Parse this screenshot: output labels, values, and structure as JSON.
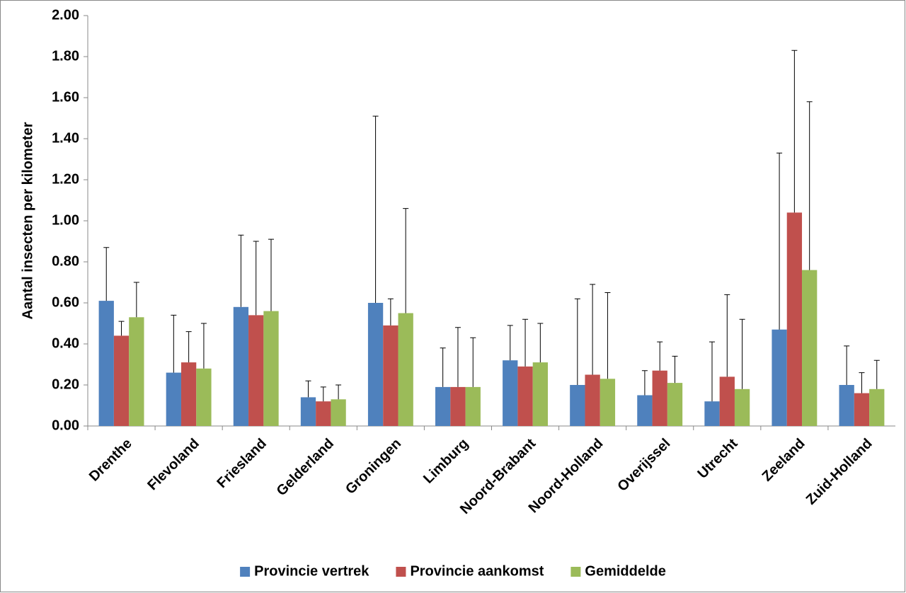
{
  "chart_data": {
    "type": "bar",
    "y_label": "Aantal insecten per kilometer",
    "categories": [
      "Drenthe",
      "Flevoland",
      "Friesland",
      "Gelderland",
      "Groningen",
      "Limburg",
      "Noord-Brabant",
      "Noord-Holland",
      "Overijssel",
      "Utrecht",
      "Zeeland",
      "Zuid-Holland"
    ],
    "series": [
      {
        "name": "Provincie vertrek",
        "color": "#4f81bd",
        "values": [
          0.61,
          0.26,
          0.58,
          0.14,
          0.6,
          0.19,
          0.32,
          0.2,
          0.15,
          0.12,
          0.47,
          0.2
        ],
        "errors": [
          0.26,
          0.28,
          0.35,
          0.08,
          0.91,
          0.19,
          0.17,
          0.42,
          0.12,
          0.29,
          0.86,
          0.19
        ]
      },
      {
        "name": "Provincie aankomst",
        "color": "#c0504d",
        "values": [
          0.44,
          0.31,
          0.54,
          0.12,
          0.49,
          0.19,
          0.29,
          0.25,
          0.27,
          0.24,
          1.04,
          0.16
        ],
        "errors": [
          0.07,
          0.15,
          0.36,
          0.07,
          0.13,
          0.29,
          0.23,
          0.44,
          0.14,
          0.4,
          0.79,
          0.1
        ]
      },
      {
        "name": "Gemiddelde",
        "color": "#9bbb59",
        "values": [
          0.53,
          0.28,
          0.56,
          0.13,
          0.55,
          0.19,
          0.31,
          0.23,
          0.21,
          0.18,
          0.76,
          0.18
        ],
        "errors": [
          0.17,
          0.22,
          0.35,
          0.07,
          0.51,
          0.24,
          0.19,
          0.42,
          0.13,
          0.34,
          0.82,
          0.14
        ]
      }
    ],
    "ylim": [
      0,
      2
    ],
    "yticks": [
      {
        "value": 0,
        "label": "0.00"
      },
      {
        "value": 0.2,
        "label": "0.20"
      },
      {
        "value": 0.4,
        "label": "0.40"
      },
      {
        "value": 0.6,
        "label": "0.60"
      },
      {
        "value": 0.8,
        "label": "0.80"
      },
      {
        "value": 1,
        "label": "1.00"
      },
      {
        "value": 1.2,
        "label": "1.20"
      },
      {
        "value": 1.4,
        "label": "1.40"
      },
      {
        "value": 1.6,
        "label": "1.60"
      },
      {
        "value": 1.8,
        "label": "1.80"
      },
      {
        "value": 2,
        "label": "2.00"
      }
    ],
    "grid": false,
    "legend": "bottom"
  }
}
